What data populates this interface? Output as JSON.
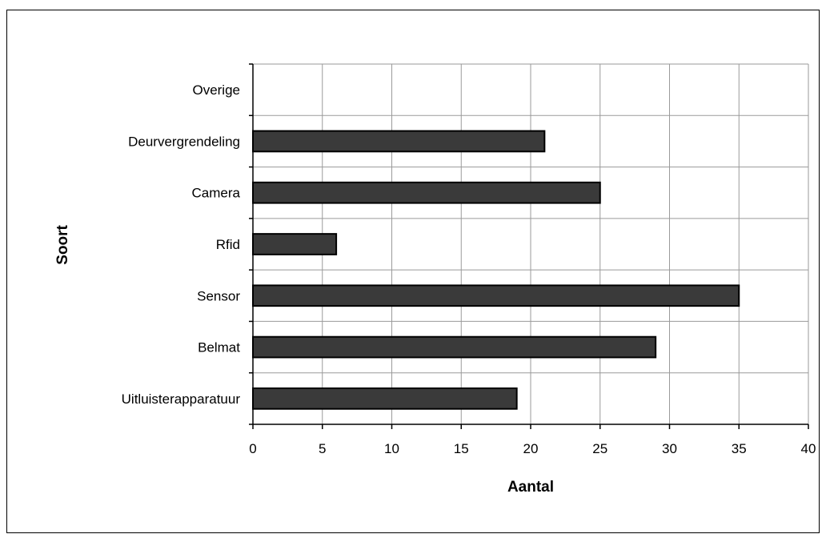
{
  "chart_data": {
    "type": "bar",
    "orientation": "horizontal",
    "xlabel": "Aantal",
    "ylabel": "Soort",
    "xlim": [
      0,
      40
    ],
    "x_ticks": [
      0,
      5,
      10,
      15,
      20,
      25,
      30,
      35,
      40
    ],
    "categories": [
      "Uitluisterapparatuur",
      "Belmat",
      "Sensor",
      "Rfid",
      "Camera",
      "Deurvergrendeling",
      "Overige"
    ],
    "values": [
      19,
      29,
      35,
      6,
      25,
      21,
      0
    ],
    "grid": true,
    "legend": "none",
    "colors": {
      "bar_fill": "#3a3a3a",
      "bar_stroke": "#000000",
      "grid": "#9a9a9a",
      "axis": "#000000"
    }
  }
}
